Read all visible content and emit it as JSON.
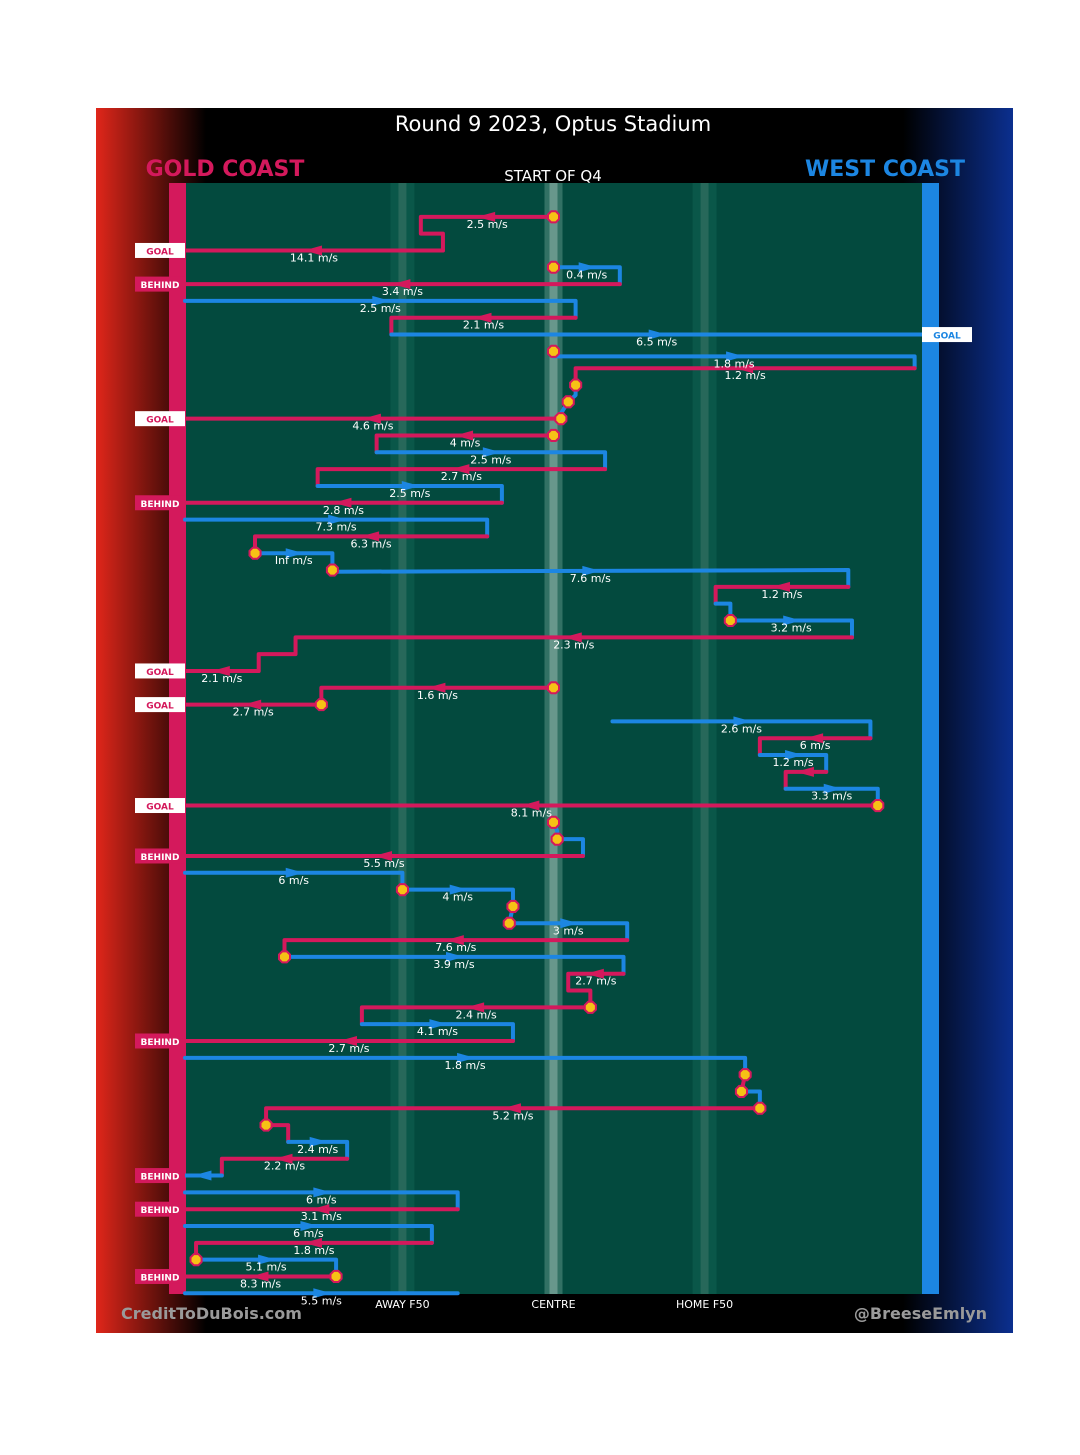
{
  "title": "Round 9 2023, Optus Stadium",
  "teams": {
    "home": {
      "name": "GOLD COAST",
      "color": "#d4195c"
    },
    "away": {
      "name": "WEST COAST",
      "color": "#1c86e2"
    }
  },
  "colors": {
    "field": "#034a3e",
    "marker": "#f6c215",
    "marker_edge": "#d4195c"
  },
  "footer": {
    "left": "CreditToDuBois.com",
    "right": "@BreeseEmlyn"
  },
  "chart_data": {
    "type": "line",
    "title": "Round 9 2023, Optus Stadium",
    "subtitle": "START OF Q4",
    "xlabel": "",
    "ylabel": "",
    "x_axis": {
      "description": "field position, 0 = Gold Coast goal line, 100 = West Coast goal line",
      "range": [
        0,
        100
      ],
      "ticks": [
        {
          "value": 29.5,
          "label": "AWAY F50"
        },
        {
          "value": 50.0,
          "label": "CENTRE"
        },
        {
          "value": 70.5,
          "label": "HOME F50"
        }
      ]
    },
    "y_axis": {
      "description": "sequence of possession chains, top to bottom",
      "range": [
        0,
        66
      ]
    },
    "legend": [
      "GOLD COAST",
      "WEST COAST"
    ],
    "series": [
      {
        "team": "gold",
        "speed": "2.5 m/s",
        "points": [
          [
            50,
            1
          ],
          [
            32,
            1
          ],
          [
            32,
            2
          ],
          [
            35,
            2
          ],
          [
            35,
            3
          ]
        ]
      },
      {
        "team": "gold",
        "speed": "14.1 m/s",
        "points": [
          [
            35,
            3
          ],
          [
            0,
            3
          ]
        ],
        "result": "GOAL"
      },
      {
        "team": "blue",
        "speed": "0.4 m/s",
        "points": [
          [
            50,
            4
          ],
          [
            59,
            4
          ],
          [
            59,
            5
          ]
        ]
      },
      {
        "team": "gold",
        "speed": "3.4 m/s",
        "points": [
          [
            59,
            5
          ],
          [
            0,
            5
          ]
        ],
        "result": "BEHIND"
      },
      {
        "team": "blue",
        "speed": "2.5 m/s",
        "points": [
          [
            0,
            6
          ],
          [
            53,
            6
          ],
          [
            53,
            7
          ]
        ]
      },
      {
        "team": "gold",
        "speed": "2.1 m/s",
        "points": [
          [
            53,
            7
          ],
          [
            28,
            7
          ],
          [
            28,
            8
          ]
        ]
      },
      {
        "team": "blue",
        "speed": "6.5 m/s",
        "points": [
          [
            28,
            8
          ],
          [
            100,
            8
          ]
        ],
        "result": "GOAL"
      },
      {
        "team": "blue",
        "speed": "1.8 m/s",
        "points": [
          [
            50,
            9
          ],
          [
            50,
            9.3
          ],
          [
            99,
            9.3
          ],
          [
            99,
            10
          ]
        ]
      },
      {
        "team": "gold",
        "speed": "1.2 m/s",
        "points": [
          [
            99,
            10
          ],
          [
            53,
            10
          ],
          [
            53,
            11
          ]
        ]
      },
      {
        "team": "blue",
        "speed": "",
        "points": [
          [
            53,
            11
          ],
          [
            53,
            11.6
          ],
          [
            52,
            12
          ],
          [
            51,
            12.7
          ]
        ]
      },
      {
        "team": "gold",
        "speed": "4.6 m/s",
        "points": [
          [
            51,
            13
          ],
          [
            0,
            13
          ]
        ],
        "result": "GOAL"
      },
      {
        "team": "gold",
        "speed": "4 m/s",
        "points": [
          [
            50,
            14
          ],
          [
            26,
            14
          ],
          [
            26,
            15
          ]
        ]
      },
      {
        "team": "blue",
        "speed": "2.5 m/s",
        "points": [
          [
            26,
            15
          ],
          [
            57,
            15
          ],
          [
            57,
            16
          ]
        ]
      },
      {
        "team": "gold",
        "speed": "2.7 m/s",
        "points": [
          [
            57,
            16
          ],
          [
            18,
            16
          ],
          [
            18,
            17
          ]
        ]
      },
      {
        "team": "blue",
        "speed": "2.5 m/s",
        "points": [
          [
            18,
            17
          ],
          [
            43,
            17
          ],
          [
            43,
            18
          ]
        ]
      },
      {
        "team": "gold",
        "speed": "2.8 m/s",
        "points": [
          [
            43,
            18
          ],
          [
            0,
            18
          ]
        ],
        "result": "BEHIND"
      },
      {
        "team": "blue",
        "speed": "7.3 m/s",
        "points": [
          [
            0,
            19
          ],
          [
            41,
            19
          ],
          [
            41,
            20
          ]
        ]
      },
      {
        "team": "gold",
        "speed": "6.3 m/s",
        "points": [
          [
            41,
            20
          ],
          [
            9.5,
            20
          ],
          [
            9.5,
            21
          ]
        ]
      },
      {
        "team": "blue",
        "speed": "Inf m/s",
        "points": [
          [
            9.5,
            21
          ],
          [
            20,
            21
          ],
          [
            20,
            22
          ]
        ]
      },
      {
        "team": "blue",
        "speed": "7.6 m/s",
        "points": [
          [
            20,
            22
          ],
          [
            20,
            22.1
          ],
          [
            90,
            22
          ],
          [
            90,
            23
          ]
        ]
      },
      {
        "team": "gold",
        "speed": "1.2 m/s",
        "points": [
          [
            90,
            23
          ],
          [
            72,
            23
          ],
          [
            72,
            24
          ]
        ]
      },
      {
        "team": "blue",
        "speed": "",
        "points": [
          [
            72,
            24
          ],
          [
            74,
            24
          ],
          [
            74,
            25
          ]
        ]
      },
      {
        "team": "blue",
        "speed": "3.2 m/s",
        "points": [
          [
            74,
            25
          ],
          [
            90.5,
            25
          ],
          [
            90.5,
            26
          ]
        ]
      },
      {
        "team": "gold",
        "speed": "2.3 m/s",
        "points": [
          [
            90.5,
            26
          ],
          [
            15,
            26
          ],
          [
            15,
            27
          ],
          [
            10,
            27
          ],
          [
            10,
            28
          ]
        ]
      },
      {
        "team": "gold",
        "speed": "2.1 m/s",
        "points": [
          [
            10,
            28
          ],
          [
            0,
            28
          ]
        ],
        "result": "GOAL"
      },
      {
        "team": "gold",
        "speed": "1.6 m/s",
        "points": [
          [
            50,
            29
          ],
          [
            18.5,
            29
          ],
          [
            18.5,
            30
          ]
        ]
      },
      {
        "team": "gold",
        "speed": "2.7 m/s",
        "points": [
          [
            18.5,
            30
          ],
          [
            0,
            30
          ]
        ],
        "result": "GOAL"
      },
      {
        "team": "blue",
        "speed": "2.6 m/s",
        "points": [
          [
            58,
            31
          ],
          [
            93,
            31
          ],
          [
            93,
            32
          ]
        ]
      },
      {
        "team": "gold",
        "speed": "6 m/s",
        "points": [
          [
            93,
            32
          ],
          [
            78,
            32
          ],
          [
            78,
            33
          ]
        ]
      },
      {
        "team": "blue",
        "speed": "1.2 m/s",
        "points": [
          [
            78,
            33
          ],
          [
            87,
            33
          ],
          [
            87,
            34
          ]
        ]
      },
      {
        "team": "gold",
        "speed": "",
        "points": [
          [
            87,
            34
          ],
          [
            81.5,
            34
          ],
          [
            81.5,
            35
          ]
        ]
      },
      {
        "team": "blue",
        "speed": "3.3 m/s",
        "points": [
          [
            81.5,
            35
          ],
          [
            94,
            35
          ],
          [
            94,
            36
          ]
        ]
      },
      {
        "team": "gold",
        "speed": "8.1 m/s",
        "points": [
          [
            94,
            36
          ],
          [
            0,
            36
          ]
        ],
        "result": "GOAL"
      },
      {
        "team": "blue",
        "speed": "",
        "points": [
          [
            50,
            37
          ],
          [
            50.5,
            37.5
          ],
          [
            50.5,
            38
          ]
        ]
      },
      {
        "team": "blue",
        "speed": "",
        "points": [
          [
            50.5,
            38
          ],
          [
            54,
            38
          ],
          [
            54,
            39
          ]
        ]
      },
      {
        "team": "gold",
        "speed": "5.5 m/s",
        "points": [
          [
            54,
            39
          ],
          [
            0,
            39
          ]
        ],
        "result": "BEHIND"
      },
      {
        "team": "blue",
        "speed": "6 m/s",
        "points": [
          [
            0,
            40
          ],
          [
            29.5,
            40
          ],
          [
            29.5,
            41
          ]
        ]
      },
      {
        "team": "blue",
        "speed": "4 m/s",
        "points": [
          [
            29.5,
            41
          ],
          [
            44.5,
            41
          ],
          [
            44.5,
            42
          ]
        ]
      },
      {
        "team": "blue",
        "speed": "",
        "points": [
          [
            44.5,
            42
          ],
          [
            44,
            43
          ]
        ]
      },
      {
        "team": "blue",
        "speed": "3 m/s",
        "points": [
          [
            44,
            43
          ],
          [
            60,
            43
          ],
          [
            60,
            44
          ]
        ]
      },
      {
        "team": "gold",
        "speed": "7.6 m/s",
        "points": [
          [
            60,
            44
          ],
          [
            13.5,
            44
          ],
          [
            13.5,
            45
          ]
        ]
      },
      {
        "team": "blue",
        "speed": "3.9 m/s",
        "points": [
          [
            13.5,
            45
          ],
          [
            59.5,
            45
          ],
          [
            59.5,
            46
          ]
        ]
      },
      {
        "team": "gold",
        "speed": "2.7 m/s",
        "points": [
          [
            59.5,
            46
          ],
          [
            52,
            46
          ],
          [
            52,
            47
          ],
          [
            55,
            47
          ],
          [
            55,
            48
          ]
        ]
      },
      {
        "team": "gold",
        "speed": "2.4 m/s",
        "points": [
          [
            55,
            48
          ],
          [
            24,
            48
          ],
          [
            24,
            49
          ]
        ]
      },
      {
        "team": "blue",
        "speed": "4.1 m/s",
        "points": [
          [
            24,
            49
          ],
          [
            44.5,
            49
          ],
          [
            44.5,
            50
          ]
        ]
      },
      {
        "team": "gold",
        "speed": "2.7 m/s",
        "points": [
          [
            44.5,
            50
          ],
          [
            0,
            50
          ]
        ],
        "result": "BEHIND"
      },
      {
        "team": "blue",
        "speed": "1.8 m/s",
        "points": [
          [
            0,
            51
          ],
          [
            76,
            51
          ],
          [
            76,
            52
          ]
        ]
      },
      {
        "team": "gold",
        "speed": "",
        "points": [
          [
            76,
            52
          ],
          [
            75.5,
            53
          ]
        ]
      },
      {
        "team": "blue",
        "speed": "",
        "points": [
          [
            75.5,
            53
          ],
          [
            78,
            53
          ],
          [
            78,
            54
          ]
        ]
      },
      {
        "team": "gold",
        "speed": "5.2 m/s",
        "points": [
          [
            78,
            54
          ],
          [
            11,
            54
          ],
          [
            11,
            55
          ]
        ]
      },
      {
        "team": "gold",
        "speed": "",
        "points": [
          [
            11,
            55
          ],
          [
            14,
            55
          ],
          [
            14,
            56
          ]
        ]
      },
      {
        "team": "blue",
        "speed": "2.4 m/s",
        "points": [
          [
            14,
            56
          ],
          [
            22,
            56
          ],
          [
            22,
            57
          ]
        ]
      },
      {
        "team": "gold",
        "speed": "2.2 m/s",
        "points": [
          [
            22,
            57
          ],
          [
            5,
            57
          ],
          [
            5,
            58
          ]
        ]
      },
      {
        "team": "blue",
        "speed": "",
        "points": [
          [
            5,
            58
          ],
          [
            0,
            58
          ]
        ],
        "result": "BEHIND"
      },
      {
        "team": "blue",
        "speed": "6 m/s",
        "points": [
          [
            0,
            59
          ],
          [
            37,
            59
          ],
          [
            37,
            60
          ]
        ]
      },
      {
        "team": "gold",
        "speed": "3.1 m/s",
        "points": [
          [
            37,
            60
          ],
          [
            0,
            60
          ]
        ],
        "result": "BEHIND"
      },
      {
        "team": "blue",
        "speed": "6 m/s",
        "points": [
          [
            0,
            61
          ],
          [
            33.5,
            61
          ],
          [
            33.5,
            62
          ]
        ]
      },
      {
        "team": "gold",
        "speed": "1.8 m/s",
        "points": [
          [
            33.5,
            62
          ],
          [
            1.5,
            62
          ],
          [
            1.5,
            63
          ]
        ]
      },
      {
        "team": "blue",
        "speed": "5.1 m/s",
        "points": [
          [
            1.5,
            63
          ],
          [
            20.5,
            63
          ],
          [
            20.5,
            64
          ]
        ]
      },
      {
        "team": "gold",
        "speed": "8.3 m/s",
        "points": [
          [
            20.5,
            64
          ],
          [
            0,
            64
          ]
        ],
        "result": "BEHIND"
      },
      {
        "team": "blue",
        "speed": "5.5 m/s",
        "points": [
          [
            0,
            65
          ],
          [
            37,
            65
          ]
        ]
      }
    ],
    "markers": [
      [
        50,
        1
      ],
      [
        50,
        4
      ],
      [
        50,
        9
      ],
      [
        53,
        11
      ],
      [
        52,
        12
      ],
      [
        51,
        13
      ],
      [
        50,
        14
      ],
      [
        9.5,
        21
      ],
      [
        20,
        22
      ],
      [
        74,
        25
      ],
      [
        50,
        29
      ],
      [
        18.5,
        30
      ],
      [
        94,
        36
      ],
      [
        50,
        37
      ],
      [
        50.5,
        38
      ],
      [
        29.5,
        41
      ],
      [
        44.5,
        42
      ],
      [
        44,
        43
      ],
      [
        13.5,
        45
      ],
      [
        55,
        48
      ],
      [
        76,
        52
      ],
      [
        75.5,
        53
      ],
      [
        78,
        54
      ],
      [
        11,
        55
      ],
      [
        1.5,
        63
      ],
      [
        20.5,
        64
      ]
    ]
  }
}
